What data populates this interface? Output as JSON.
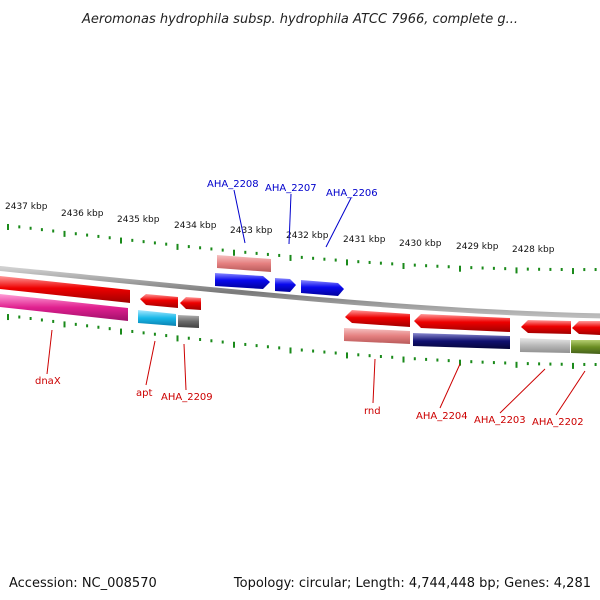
{
  "title": "Aeromonas hydrophila subsp. hydrophila ATCC 7966, complete g...",
  "accession_text": "Accession: NC_008570",
  "topology_text": "Topology: circular; Length: 4,744,448 bp; Genes: 4,281",
  "ruler": {
    "ticks": [
      "2437 kbp",
      "2436 kbp",
      "2435 kbp",
      "2434 kbp",
      "2433 kbp",
      "2432 kbp",
      "2431 kbp",
      "2430 kbp",
      "2429 kbp",
      "2428 kbp"
    ],
    "tick_color": "#1a8a1a"
  },
  "backbone_color": "#8a8a8a",
  "genes": {
    "upper_labels": [
      "AHA_2208",
      "AHA_2207",
      "AHA_2206"
    ],
    "lower_labels": [
      "dnaX",
      "apt",
      "AHA_2209",
      "rnd",
      "AHA_2204",
      "AHA_2203",
      "AHA_2202"
    ],
    "upper_label_color": "#0000cc",
    "lower_label_color": "#cc0000"
  },
  "colors": {
    "red": "#ee0000",
    "light_red": "#e58080",
    "magenta": "#e0208f",
    "cyan": "#18b8e8",
    "gray_dark": "#6a6a6a",
    "gray_light": "#b8b8b8",
    "blue": "#0a0aee",
    "navy": "#101070",
    "olive": "#6b8e23"
  }
}
